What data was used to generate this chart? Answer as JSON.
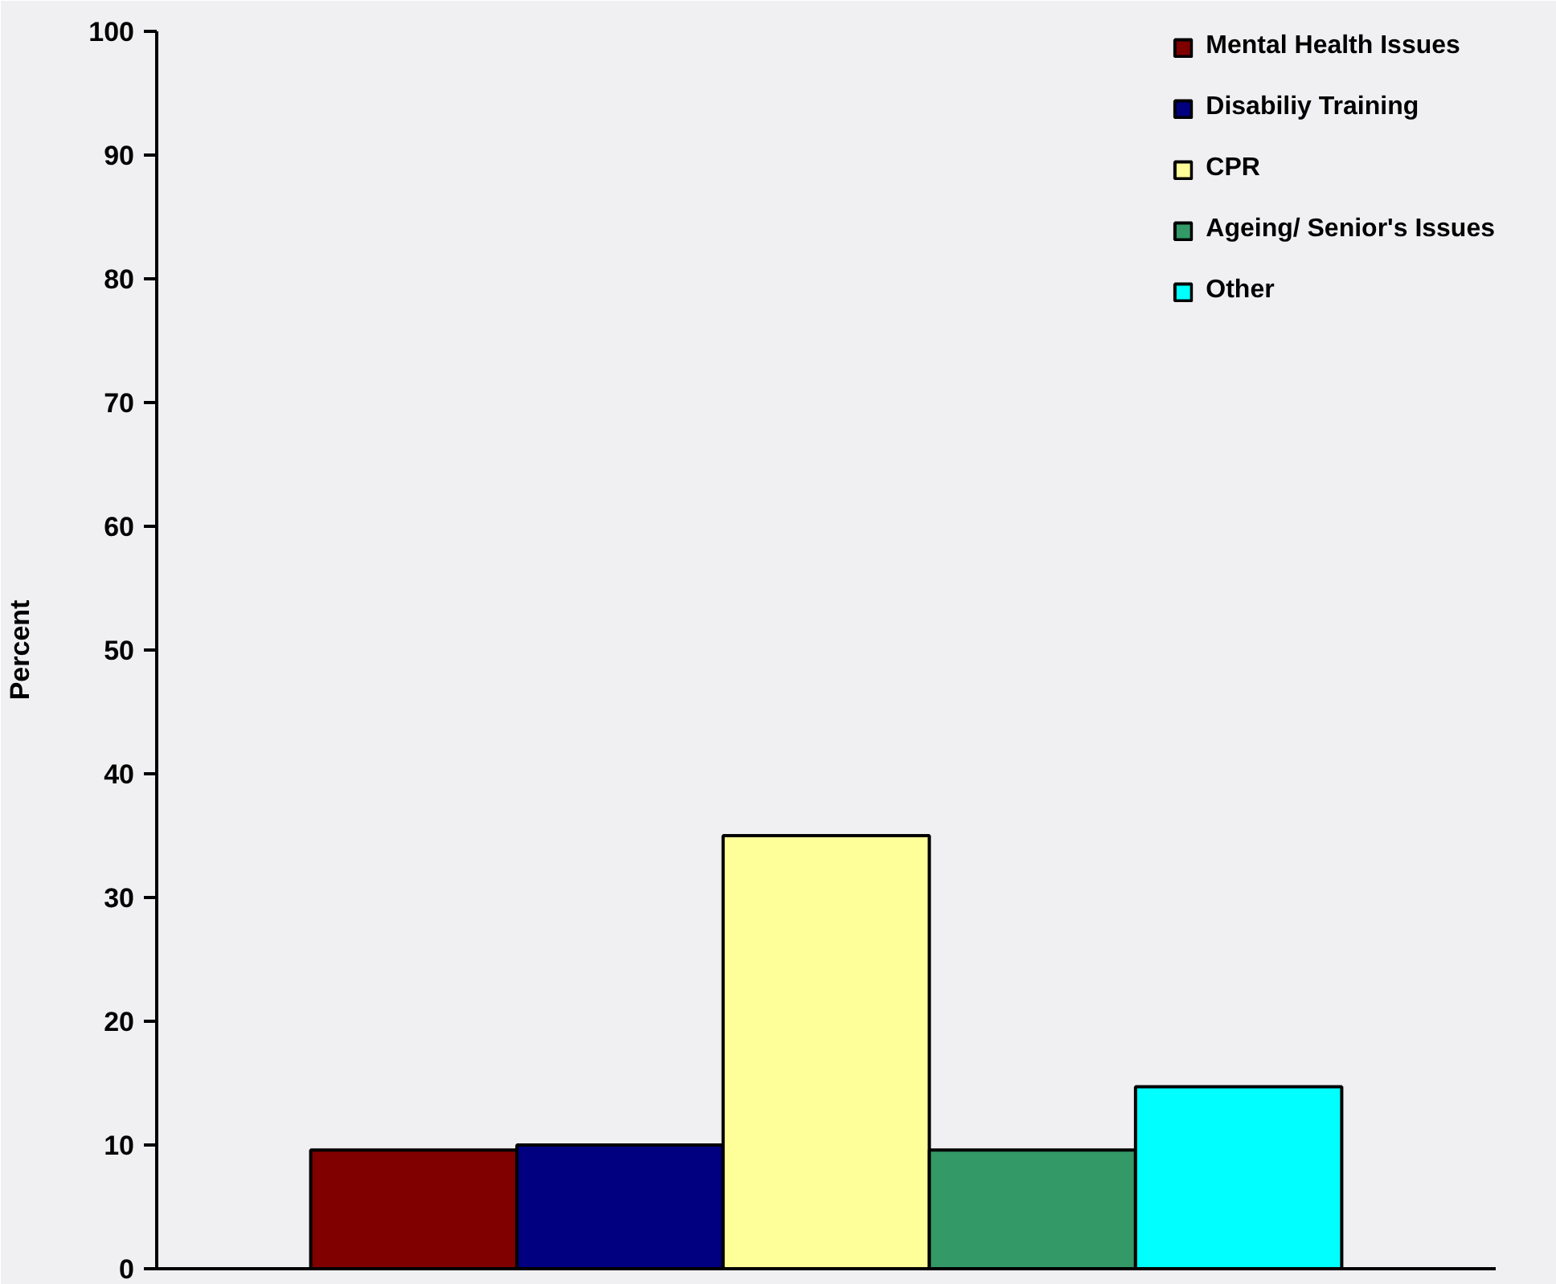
{
  "chart_data": {
    "type": "bar",
    "ylabel": "Percent",
    "categories": [
      null
    ],
    "series": [
      {
        "name": "Mental Health Issues",
        "color": "#800000",
        "values": [
          9.6
        ]
      },
      {
        "name": "Disabiliy Training",
        "color": "#000080",
        "values": [
          10
        ]
      },
      {
        "name": "CPR",
        "color": "#ffff99",
        "values": [
          35
        ]
      },
      {
        "name": "Ageing/ Senior's Issues",
        "color": "#339966",
        "values": [
          9.6
        ]
      },
      {
        "name": "Other",
        "color": "#00ffff",
        "values": [
          14.7
        ]
      }
    ],
    "ylim": [
      0,
      100
    ],
    "yticks": [
      0,
      10,
      20,
      30,
      40,
      50,
      60,
      70,
      80,
      90,
      100
    ],
    "legend": "top right",
    "tick_labels": "y"
  }
}
